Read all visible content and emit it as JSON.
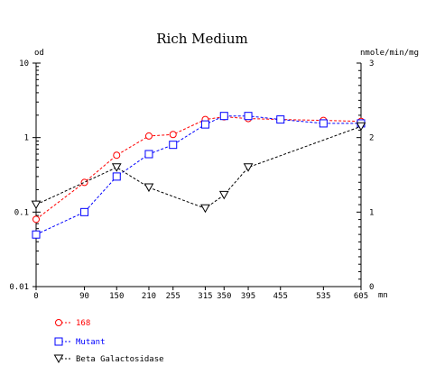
{
  "chart_data": {
    "type": "line",
    "title": "Rich Medium",
    "y_left_label": "od",
    "y_right_label": "nmole/min/mg",
    "x_unit": "mn",
    "x_ticks": [
      0,
      90,
      150,
      210,
      255,
      315,
      350,
      395,
      455,
      535,
      605
    ],
    "x_tick_labels": [
      "0",
      "90",
      "150",
      "210",
      "255",
      "315",
      "350",
      "395",
      "455",
      "535",
      "605"
    ],
    "x_range": [
      0,
      605
    ],
    "y_left_scale": "log",
    "y_left_range": [
      0.01,
      10
    ],
    "y_left_ticks": [
      10,
      1,
      0.1,
      0.01
    ],
    "y_left_tick_labels": [
      "10",
      "1",
      "0.1",
      "0.01"
    ],
    "y_right_range": [
      0,
      3
    ],
    "y_right_ticks": [
      3,
      2,
      1,
      0
    ],
    "y_right_tick_labels": [
      "3",
      "2",
      "1",
      "0"
    ],
    "grid": false,
    "legend_position": "bottom-left",
    "series": [
      {
        "name": "168",
        "axis": "left",
        "color": "#ff0000",
        "marker": "circle",
        "x": [
          0,
          90,
          150,
          210,
          255,
          315,
          350,
          395,
          455,
          535,
          605
        ],
        "y": [
          0.08,
          0.25,
          0.58,
          1.05,
          1.1,
          1.75,
          1.9,
          1.8,
          1.75,
          1.7,
          1.65
        ]
      },
      {
        "name": "Mutant",
        "axis": "left",
        "color": "#0000ff",
        "marker": "square",
        "x": [
          0,
          90,
          150,
          210,
          255,
          315,
          350,
          395,
          455,
          535,
          605
        ],
        "y": [
          0.05,
          0.1,
          0.3,
          0.6,
          0.8,
          1.5,
          1.95,
          1.95,
          1.75,
          1.55,
          1.55
        ]
      },
      {
        "name": "Beta Galactosidase",
        "axis": "right",
        "color": "#000000",
        "marker": "triangle-down",
        "x": [
          0,
          150,
          210,
          315,
          350,
          395,
          605
        ],
        "y": [
          1.1,
          1.6,
          1.33,
          1.05,
          1.23,
          1.6,
          2.15
        ]
      }
    ]
  }
}
